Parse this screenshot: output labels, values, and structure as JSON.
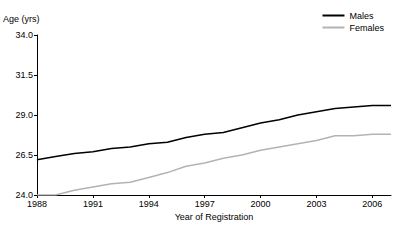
{
  "chart_data": {
    "type": "line",
    "x_label": "Year of Registration",
    "y_label": "Age (yrs)",
    "x": [
      1988,
      1989,
      1990,
      1991,
      1992,
      1993,
      1994,
      1995,
      1996,
      1997,
      1998,
      1999,
      2000,
      2001,
      2002,
      2003,
      2004,
      2005,
      2006,
      2007
    ],
    "series": [
      {
        "name": "Males",
        "color": "#000000",
        "values": [
          26.2,
          26.4,
          26.6,
          26.7,
          26.9,
          27.0,
          27.2,
          27.3,
          27.6,
          27.8,
          27.9,
          28.2,
          28.5,
          28.7,
          29.0,
          29.2,
          29.4,
          29.5,
          29.6,
          29.6
        ]
      },
      {
        "name": "Females",
        "color": "#b3b3b3",
        "values": [
          24.0,
          24.0,
          24.3,
          24.5,
          24.7,
          24.8,
          25.1,
          25.4,
          25.8,
          26.0,
          26.3,
          26.5,
          26.8,
          27.0,
          27.2,
          27.4,
          27.7,
          27.7,
          27.8,
          27.8
        ]
      }
    ],
    "xlim": [
      1988,
      2007
    ],
    "xticks": [
      1988,
      1991,
      1994,
      1997,
      2000,
      2003,
      2006
    ],
    "ylim": [
      24,
      34
    ],
    "yticks": [
      {
        "value": 24,
        "label": "24.0"
      },
      {
        "value": 26.5,
        "label": "26.5"
      },
      {
        "value": 29,
        "label": "29.0"
      },
      {
        "value": 31.5,
        "label": "31.5"
      },
      {
        "value": 34,
        "label": "34.0"
      }
    ],
    "grid": false,
    "legend": "upper right"
  }
}
